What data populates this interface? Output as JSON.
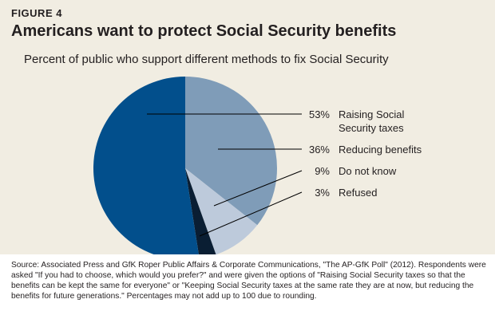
{
  "header": {
    "figure_label": "FIGURE 4",
    "title": "Americans want to protect Social Security benefits",
    "subtitle": "Percent of public who support different methods to fix Social Security"
  },
  "chart_data": {
    "type": "pie",
    "title": "Americans want to protect Social Security benefits",
    "subtitle": "Percent of public who support different methods to fix Social Security",
    "legend_position": "right",
    "slices": [
      {
        "label": "Raising Social Security taxes",
        "label_lines": [
          "Raising Social",
          "Security taxes"
        ],
        "value": 53,
        "value_label": "53%",
        "color": "#024f8c"
      },
      {
        "label": "Reducing benefits",
        "label_lines": [
          "Reducing benefits"
        ],
        "value": 36,
        "value_label": "36%",
        "color": "#7f9cb8"
      },
      {
        "label": "Do not know",
        "label_lines": [
          "Do not know"
        ],
        "value": 9,
        "value_label": "9%",
        "color": "#bdcadb"
      },
      {
        "label": "Refused",
        "label_lines": [
          "Refused"
        ],
        "value": 3,
        "value_label": "3%",
        "color": "#0a1e33"
      }
    ]
  },
  "footer": {
    "source": "Source: Associated Press and GfK Roper Public Affairs & Corporate Communications, \"The AP-GfK Poll\" (2012). Respondents were asked \"If you had to choose, which would you prefer?\" and were given the options of \"Raising Social Security taxes so that the benefits can be kept the same for everyone\" or \"Keeping Social Security taxes at the same rate they are at now, but reducing the benefits for future generations.\" Percentages may not add up to 100 due to rounding."
  }
}
